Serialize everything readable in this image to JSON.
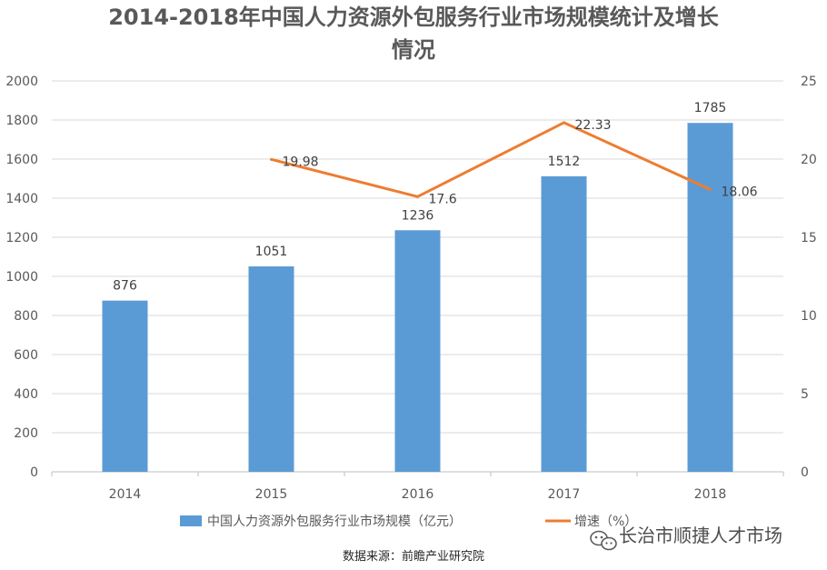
{
  "chart_data": {
    "type": "bar",
    "title_line1": "2014-2018年中国人力资源外包服务行业市场规模统计及增长",
    "title_line2": "情况",
    "categories": [
      "2014",
      "2015",
      "2016",
      "2017",
      "2018"
    ],
    "series": [
      {
        "name": "中国人力资源外包服务行业市场规模（亿元）",
        "kind": "bar",
        "axis": "left",
        "color": "#5b9bd5",
        "values": [
          876,
          1051,
          1236,
          1512,
          1785
        ],
        "labels": [
          "876",
          "1051",
          "1236",
          "1512",
          "1785"
        ]
      },
      {
        "name": "增速（%）",
        "kind": "line",
        "axis": "right",
        "color": "#ed7d31",
        "values": [
          null,
          19.98,
          17.6,
          22.33,
          18.06
        ],
        "labels": [
          "",
          "19.98",
          "17.6",
          "22.33",
          "18.06"
        ]
      }
    ],
    "left_axis": {
      "min": 0,
      "max": 2000,
      "ticks": [
        "0",
        "200",
        "400",
        "600",
        "800",
        "1000",
        "1200",
        "1400",
        "1600",
        "1800",
        "2000"
      ]
    },
    "right_axis": {
      "min": 0,
      "max": 25,
      "ticks": [
        "0",
        "5",
        "10",
        "15",
        "20",
        "25"
      ]
    },
    "grid": true,
    "legend_position": "bottom"
  },
  "source_text": "数据来源：前瞻产业研究院",
  "watermark_text": "长治市顺捷人才市场",
  "colors": {
    "grid": "#d9d9d9",
    "axis": "#bfbfbf"
  }
}
